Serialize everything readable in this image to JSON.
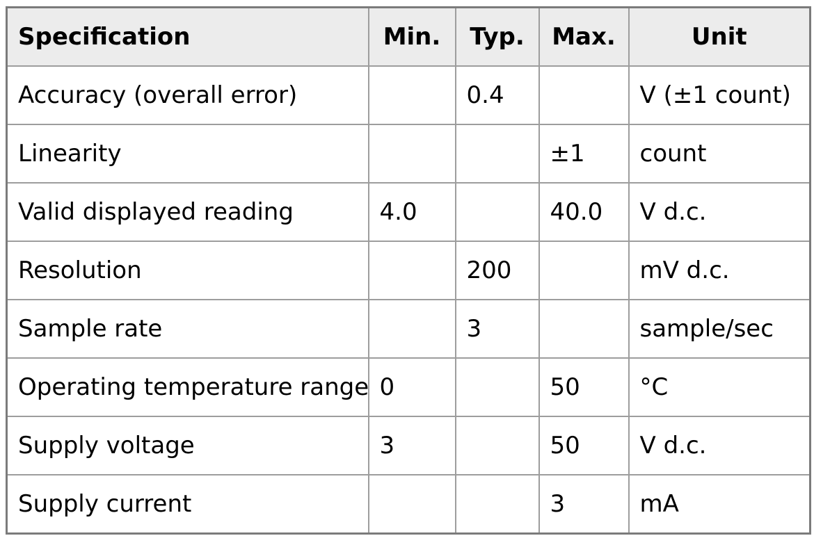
{
  "table": {
    "columns": [
      {
        "key": "spec",
        "label": "Specification"
      },
      {
        "key": "min",
        "label": "Min."
      },
      {
        "key": "typ",
        "label": "Typ."
      },
      {
        "key": "max",
        "label": "Max."
      },
      {
        "key": "unit",
        "label": "Unit"
      }
    ],
    "rows": [
      {
        "spec": "Accuracy (overall error)",
        "min": "",
        "typ": "0.4",
        "max": "",
        "unit": "V (±1 count)"
      },
      {
        "spec": "Linearity",
        "min": "",
        "typ": "",
        "max": "±1",
        "unit": "count"
      },
      {
        "spec": "Valid displayed reading",
        "min": "4.0",
        "typ": "",
        "max": "40.0",
        "unit": "V d.c."
      },
      {
        "spec": "Resolution",
        "min": "",
        "typ": "200",
        "max": "",
        "unit": "mV d.c."
      },
      {
        "spec": "Sample rate",
        "min": "",
        "typ": "3",
        "max": "",
        "unit": "sample/sec"
      },
      {
        "spec": "Operating temperature range",
        "min": "0",
        "typ": "",
        "max": "50",
        "unit": "°C"
      },
      {
        "spec": "Supply voltage",
        "min": "3",
        "typ": "",
        "max": "50",
        "unit": "V d.c."
      },
      {
        "spec": "Supply current",
        "min": "",
        "typ": "",
        "max": "3",
        "unit": "mA"
      }
    ],
    "colors": {
      "header_bg": "#ececec",
      "border_outer": "#7b7b7b",
      "border_inner": "#9d9d9d",
      "text": "#000000",
      "body_bg": "#ffffff"
    }
  }
}
